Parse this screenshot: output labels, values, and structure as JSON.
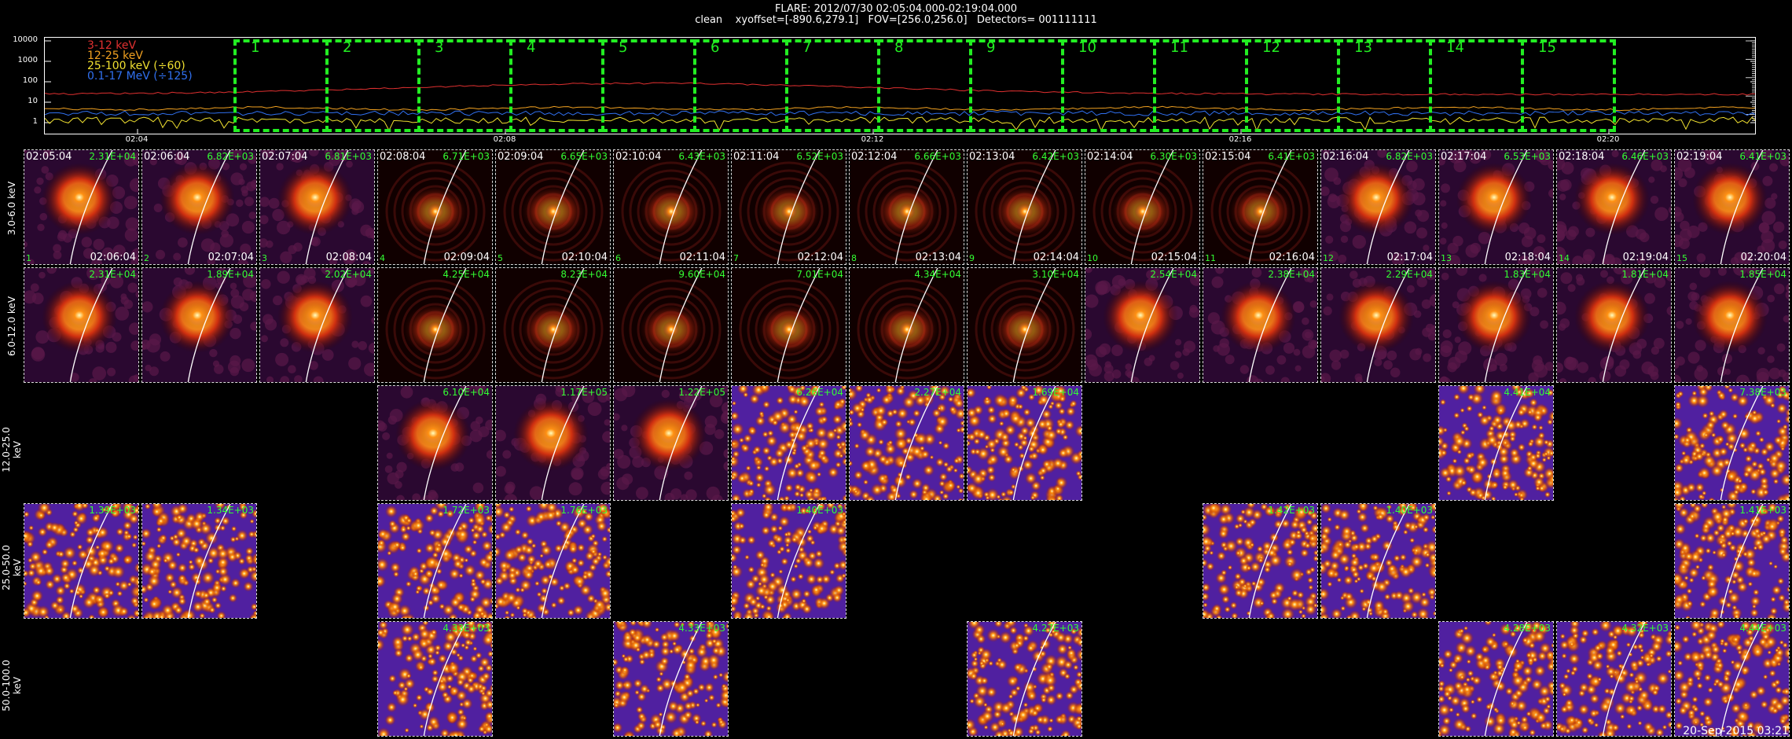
{
  "header": {
    "line1": "FLARE: 2012/07/30 02:05:04.000-02:19:04.000",
    "line2": "clean    xyoffset=[-890.6,279.1]   FOV=[256.0,256.0]   Detectors= 001111111"
  },
  "lightcurve": {
    "legend": [
      {
        "label": "3-12 keV",
        "color": "#e03030"
      },
      {
        "label": "12-25 keV",
        "color": "#f0a020"
      },
      {
        "label": "25-100 keV (÷60)",
        "color": "#f0e030"
      },
      {
        "label": "0.1-17 MeV (÷125)",
        "color": "#3070f0"
      }
    ],
    "yticks": [
      "10000",
      "1000",
      "100",
      "10",
      "1"
    ],
    "xticks": [
      "02:04",
      "02:08",
      "02:12",
      "02:16",
      "02:20"
    ],
    "windows": [
      "1",
      "2",
      "3",
      "4",
      "5",
      "6",
      "7",
      "8",
      "9",
      "10",
      "11",
      "12",
      "13",
      "14",
      "15"
    ]
  },
  "row_labels": [
    "3.0-6.0 keV",
    "6.0-12.0 keV",
    "12.0-25.0 keV",
    "25.0-50.0 keV",
    "50.0-100.0 keV"
  ],
  "time_starts": [
    "02:05:04",
    "02:06:04",
    "02:07:04",
    "02:08:04",
    "02:09:04",
    "02:10:04",
    "02:11:04",
    "02:12:04",
    "02:13:04",
    "02:14:04",
    "02:15:04",
    "02:16:04",
    "02:17:04",
    "02:18:04",
    "02:19:04"
  ],
  "time_ends": [
    "02:06:04",
    "02:07:04",
    "02:08:04",
    "02:09:04",
    "02:10:04",
    "02:11:04",
    "02:12:04",
    "02:13:04",
    "02:14:04",
    "02:15:04",
    "02:16:04",
    "02:17:04",
    "02:18:04",
    "02:19:04",
    "02:20:04"
  ],
  "images": [
    {
      "row": 0,
      "col": 0,
      "peak": "2.31E+04",
      "style": "source"
    },
    {
      "row": 0,
      "col": 1,
      "peak": "6.82E+03",
      "style": "source"
    },
    {
      "row": 0,
      "col": 2,
      "peak": "6.81E+03",
      "style": "source"
    },
    {
      "row": 0,
      "col": 3,
      "peak": "6.71E+03",
      "style": "compact"
    },
    {
      "row": 0,
      "col": 4,
      "peak": "6.65E+03",
      "style": "compact"
    },
    {
      "row": 0,
      "col": 5,
      "peak": "6.43E+03",
      "style": "compact"
    },
    {
      "row": 0,
      "col": 6,
      "peak": "6.52E+03",
      "style": "compact"
    },
    {
      "row": 0,
      "col": 7,
      "peak": "6.66E+03",
      "style": "compact"
    },
    {
      "row": 0,
      "col": 8,
      "peak": "6.42E+03",
      "style": "compact"
    },
    {
      "row": 0,
      "col": 9,
      "peak": "6.30E+03",
      "style": "compact"
    },
    {
      "row": 0,
      "col": 10,
      "peak": "6.41E+03",
      "style": "compact"
    },
    {
      "row": 0,
      "col": 11,
      "peak": "6.82E+03",
      "style": "source"
    },
    {
      "row": 0,
      "col": 12,
      "peak": "6.53E+03",
      "style": "source"
    },
    {
      "row": 0,
      "col": 13,
      "peak": "6.46E+03",
      "style": "source"
    },
    {
      "row": 0,
      "col": 14,
      "peak": "6.41E+03",
      "style": "source"
    },
    {
      "row": 1,
      "col": 0,
      "peak": "2.31E+04",
      "style": "source"
    },
    {
      "row": 1,
      "col": 1,
      "peak": "1.89E+04",
      "style": "source"
    },
    {
      "row": 1,
      "col": 2,
      "peak": "2.02E+04",
      "style": "source"
    },
    {
      "row": 1,
      "col": 3,
      "peak": "4.25E+04",
      "style": "compact"
    },
    {
      "row": 1,
      "col": 4,
      "peak": "8.23E+04",
      "style": "compact"
    },
    {
      "row": 1,
      "col": 5,
      "peak": "9.60E+04",
      "style": "compact"
    },
    {
      "row": 1,
      "col": 6,
      "peak": "7.01E+04",
      "style": "compact"
    },
    {
      "row": 1,
      "col": 7,
      "peak": "4.34E+04",
      "style": "compact"
    },
    {
      "row": 1,
      "col": 8,
      "peak": "3.10E+04",
      "style": "compact"
    },
    {
      "row": 1,
      "col": 9,
      "peak": "2.54E+04",
      "style": "source"
    },
    {
      "row": 1,
      "col": 10,
      "peak": "2.38E+04",
      "style": "source"
    },
    {
      "row": 1,
      "col": 11,
      "peak": "2.29E+04",
      "style": "source"
    },
    {
      "row": 1,
      "col": 12,
      "peak": "1.83E+04",
      "style": "source"
    },
    {
      "row": 1,
      "col": 13,
      "peak": "1.81E+04",
      "style": "source"
    },
    {
      "row": 1,
      "col": 14,
      "peak": "1.85E+04",
      "style": "source"
    },
    {
      "row": 2,
      "col": 3,
      "peak": "6.10E+04",
      "style": "source"
    },
    {
      "row": 2,
      "col": 4,
      "peak": "1.17E+05",
      "style": "source"
    },
    {
      "row": 2,
      "col": 5,
      "peak": "1.22E+05",
      "style": "source"
    },
    {
      "row": 2,
      "col": 6,
      "peak": "6.26E+04",
      "style": "noise"
    },
    {
      "row": 2,
      "col": 7,
      "peak": "2.27E+04",
      "style": "noise"
    },
    {
      "row": 2,
      "col": 8,
      "peak": "1.69E+04",
      "style": "noise"
    },
    {
      "row": 2,
      "col": 12,
      "peak": "4.41E+04",
      "style": "noise"
    },
    {
      "row": 2,
      "col": 14,
      "peak": "7.38E+03",
      "style": "noise"
    },
    {
      "row": 3,
      "col": 0,
      "peak": "1.39E+03",
      "style": "noise"
    },
    {
      "row": 3,
      "col": 1,
      "peak": "1.34E+03",
      "style": "noise"
    },
    {
      "row": 3,
      "col": 3,
      "peak": "1.72E+03",
      "style": "noise"
    },
    {
      "row": 3,
      "col": 4,
      "peak": "1.76E+03",
      "style": "noise"
    },
    {
      "row": 3,
      "col": 6,
      "peak": "1.40E+03",
      "style": "noise"
    },
    {
      "row": 3,
      "col": 10,
      "peak": "1.42E+03",
      "style": "noise"
    },
    {
      "row": 3,
      "col": 11,
      "peak": "1.40E+03",
      "style": "noise"
    },
    {
      "row": 3,
      "col": 14,
      "peak": "1.41E+03",
      "style": "noise"
    },
    {
      "row": 4,
      "col": 3,
      "peak": "4.33E+03",
      "style": "noise"
    },
    {
      "row": 4,
      "col": 5,
      "peak": "4.33E+03",
      "style": "noise"
    },
    {
      "row": 4,
      "col": 8,
      "peak": "4.27E+03",
      "style": "noise"
    },
    {
      "row": 4,
      "col": 12,
      "peak": "4.28E+03",
      "style": "noise"
    },
    {
      "row": 4,
      "col": 13,
      "peak": "4.32E+03",
      "style": "noise"
    },
    {
      "row": 4,
      "col": 14,
      "peak": "4.44E+03",
      "style": "noise"
    }
  ],
  "datestamp": "20-Sep-2015 03:21"
}
